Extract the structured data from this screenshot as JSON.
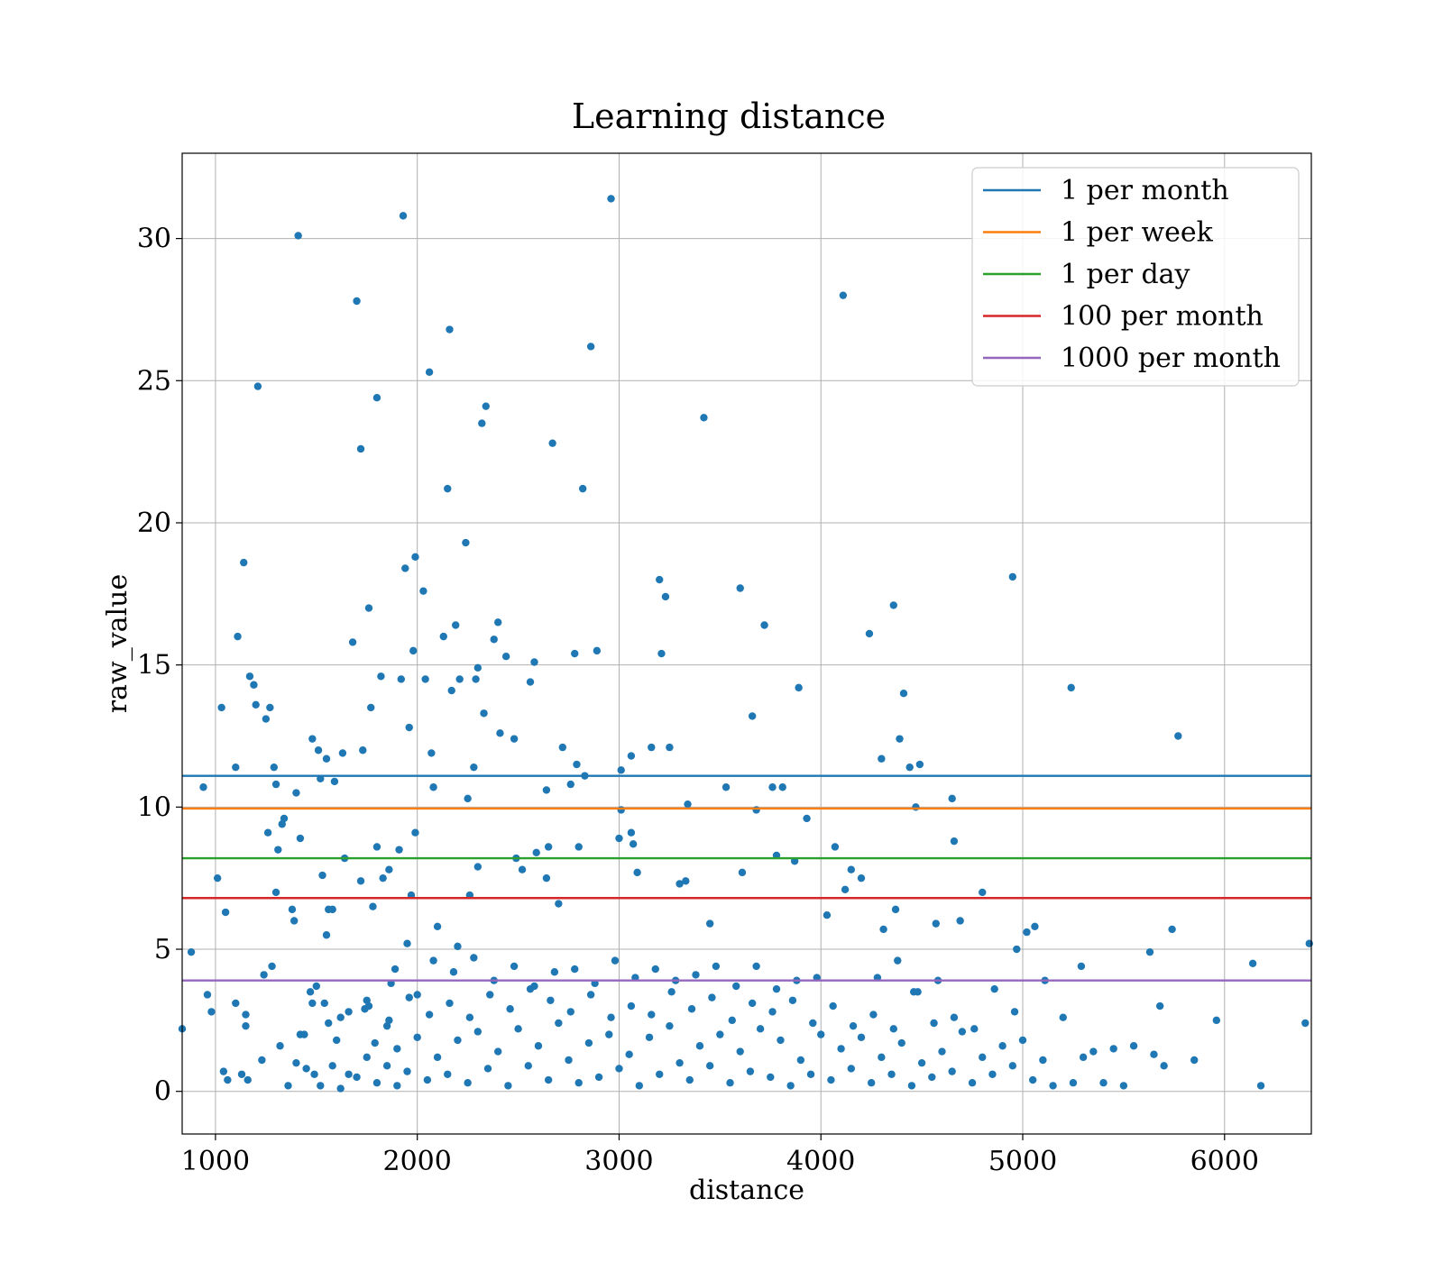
{
  "chart_data": {
    "type": "scatter",
    "title": "Learning distance",
    "xlabel": "distance",
    "ylabel": "raw_value",
    "xlim": [
      835,
      6430
    ],
    "ylim": [
      -1.5,
      33
    ],
    "xticks": [
      1000,
      2000,
      3000,
      4000,
      5000,
      6000
    ],
    "yticks": [
      0,
      5,
      10,
      15,
      20,
      25,
      30
    ],
    "grid": true,
    "legend_position": "top-right",
    "point_color": "#1f77b4",
    "hlines": [
      {
        "name": "1 per month",
        "y": 11.1,
        "color": "#1f77b4"
      },
      {
        "name": "1 per week",
        "y": 9.95,
        "color": "#ff7f0e"
      },
      {
        "name": "1 per day",
        "y": 8.2,
        "color": "#2ca02c"
      },
      {
        "name": "100 per month",
        "y": 6.8,
        "color": "#d62728"
      },
      {
        "name": "1000 per month",
        "y": 3.9,
        "color": "#9467bd"
      }
    ],
    "points": [
      [
        835,
        2.2
      ],
      [
        880,
        4.9
      ],
      [
        940,
        10.7
      ],
      [
        960,
        3.4
      ],
      [
        980,
        2.8
      ],
      [
        1010,
        7.5
      ],
      [
        1030,
        13.5
      ],
      [
        1040,
        0.7
      ],
      [
        1050,
        6.3
      ],
      [
        1060,
        0.4
      ],
      [
        1100,
        11.4
      ],
      [
        1100,
        3.1
      ],
      [
        1110,
        16.0
      ],
      [
        1130,
        0.6
      ],
      [
        1140,
        18.6
      ],
      [
        1150,
        2.3
      ],
      [
        1150,
        2.7
      ],
      [
        1160,
        0.4
      ],
      [
        1170,
        14.6
      ],
      [
        1190,
        14.3
      ],
      [
        1200,
        13.6
      ],
      [
        1210,
        24.8
      ],
      [
        1230,
        1.1
      ],
      [
        1240,
        4.1
      ],
      [
        1250,
        13.1
      ],
      [
        1260,
        9.1
      ],
      [
        1270,
        13.5
      ],
      [
        1280,
        4.4
      ],
      [
        1290,
        11.4
      ],
      [
        1300,
        10.8
      ],
      [
        1300,
        7.0
      ],
      [
        1310,
        8.5
      ],
      [
        1320,
        1.6
      ],
      [
        1330,
        9.4
      ],
      [
        1340,
        9.6
      ],
      [
        1360,
        0.2
      ],
      [
        1380,
        6.4
      ],
      [
        1390,
        6.0
      ],
      [
        1400,
        10.5
      ],
      [
        1410,
        30.1
      ],
      [
        1420,
        2.0
      ],
      [
        1420,
        8.9
      ],
      [
        1440,
        2.0
      ],
      [
        1470,
        3.5
      ],
      [
        1480,
        12.4
      ],
      [
        1490,
        0.6
      ],
      [
        1500,
        3.7
      ],
      [
        1510,
        12.0
      ],
      [
        1520,
        11.0
      ],
      [
        1530,
        7.6
      ],
      [
        1540,
        3.1
      ],
      [
        1550,
        11.7
      ],
      [
        1550,
        5.5
      ],
      [
        1560,
        6.4
      ],
      [
        1580,
        6.4
      ],
      [
        1590,
        10.9
      ],
      [
        1600,
        1.8
      ],
      [
        1620,
        2.6
      ],
      [
        1630,
        11.9
      ],
      [
        1640,
        8.2
      ],
      [
        1660,
        0.6
      ],
      [
        1680,
        15.8
      ],
      [
        1700,
        27.8
      ],
      [
        1720,
        22.6
      ],
      [
        1720,
        7.4
      ],
      [
        1730,
        12.0
      ],
      [
        1740,
        2.9
      ],
      [
        1750,
        3.2
      ],
      [
        1760,
        17.0
      ],
      [
        1770,
        13.5
      ],
      [
        1780,
        6.5
      ],
      [
        1790,
        1.7
      ],
      [
        1800,
        24.4
      ],
      [
        1800,
        8.6
      ],
      [
        1820,
        14.6
      ],
      [
        1830,
        7.5
      ],
      [
        1850,
        2.3
      ],
      [
        1860,
        7.8
      ],
      [
        1870,
        3.8
      ],
      [
        1890,
        4.3
      ],
      [
        1900,
        0.2
      ],
      [
        1910,
        8.5
      ],
      [
        1920,
        14.5
      ],
      [
        1930,
        30.8
      ],
      [
        1940,
        18.4
      ],
      [
        1950,
        5.2
      ],
      [
        1960,
        12.8
      ],
      [
        1970,
        6.9
      ],
      [
        1980,
        15.5
      ],
      [
        1990,
        18.8
      ],
      [
        1990,
        9.1
      ],
      [
        2000,
        3.4
      ],
      [
        2030,
        17.6
      ],
      [
        2040,
        14.5
      ],
      [
        2060,
        25.3
      ],
      [
        2070,
        11.9
      ],
      [
        2080,
        10.7
      ],
      [
        2100,
        5.8
      ],
      [
        2130,
        16.0
      ],
      [
        2150,
        21.2
      ],
      [
        2160,
        26.8
      ],
      [
        2170,
        14.1
      ],
      [
        2190,
        16.4
      ],
      [
        2200,
        5.1
      ],
      [
        2210,
        14.5
      ],
      [
        2240,
        19.3
      ],
      [
        2250,
        10.3
      ],
      [
        2260,
        6.9
      ],
      [
        2280,
        11.4
      ],
      [
        2290,
        14.5
      ],
      [
        2300,
        14.9
      ],
      [
        2300,
        7.9
      ],
      [
        2320,
        23.5
      ],
      [
        2330,
        13.3
      ],
      [
        2340,
        24.1
      ],
      [
        2380,
        15.9
      ],
      [
        2400,
        16.5
      ],
      [
        2410,
        12.6
      ],
      [
        2440,
        15.3
      ],
      [
        2480,
        12.4
      ],
      [
        2490,
        8.2
      ],
      [
        2520,
        7.8
      ],
      [
        2560,
        14.4
      ],
      [
        2580,
        15.1
      ],
      [
        2590,
        8.4
      ],
      [
        2640,
        10.6
      ],
      [
        2640,
        7.5
      ],
      [
        2650,
        8.6
      ],
      [
        2670,
        22.8
      ],
      [
        2700,
        6.6
      ],
      [
        2720,
        12.1
      ],
      [
        2760,
        10.8
      ],
      [
        2780,
        15.4
      ],
      [
        2790,
        11.5
      ],
      [
        2800,
        8.6
      ],
      [
        2820,
        21.2
      ],
      [
        2830,
        11.1
      ],
      [
        2860,
        26.2
      ],
      [
        2890,
        15.5
      ],
      [
        2960,
        31.4
      ],
      [
        3000,
        8.9
      ],
      [
        3010,
        11.3
      ],
      [
        3010,
        9.9
      ],
      [
        3060,
        11.8
      ],
      [
        3060,
        9.1
      ],
      [
        3070,
        8.7
      ],
      [
        3090,
        7.7
      ],
      [
        3160,
        12.1
      ],
      [
        3200,
        18.0
      ],
      [
        3210,
        15.4
      ],
      [
        3230,
        17.4
      ],
      [
        3250,
        12.1
      ],
      [
        3300,
        7.3
      ],
      [
        3330,
        7.4
      ],
      [
        3340,
        10.1
      ],
      [
        3420,
        23.7
      ],
      [
        3450,
        5.9
      ],
      [
        3530,
        10.7
      ],
      [
        3600,
        17.7
      ],
      [
        3610,
        7.7
      ],
      [
        3660,
        13.2
      ],
      [
        3680,
        9.9
      ],
      [
        3720,
        16.4
      ],
      [
        3760,
        10.7
      ],
      [
        3780,
        8.3
      ],
      [
        3810,
        10.7
      ],
      [
        3870,
        8.1
      ],
      [
        3890,
        14.2
      ],
      [
        3930,
        9.6
      ],
      [
        4030,
        6.2
      ],
      [
        4070,
        8.6
      ],
      [
        4110,
        28.0
      ],
      [
        4120,
        7.1
      ],
      [
        4150,
        7.8
      ],
      [
        4200,
        7.5
      ],
      [
        4240,
        16.1
      ],
      [
        4300,
        11.7
      ],
      [
        4310,
        5.7
      ],
      [
        4360,
        17.1
      ],
      [
        4370,
        6.4
      ],
      [
        4390,
        12.4
      ],
      [
        4410,
        14.0
      ],
      [
        4440,
        11.4
      ],
      [
        4470,
        10.0
      ],
      [
        4490,
        11.5
      ],
      [
        4570,
        5.9
      ],
      [
        4650,
        10.3
      ],
      [
        4660,
        8.8
      ],
      [
        4690,
        6.0
      ],
      [
        4800,
        7.0
      ],
      [
        4950,
        18.1
      ],
      [
        4970,
        5.0
      ],
      [
        5020,
        5.6
      ],
      [
        5060,
        5.8
      ],
      [
        5110,
        3.9
      ],
      [
        5240,
        14.2
      ],
      [
        5290,
        4.4
      ],
      [
        5630,
        4.9
      ],
      [
        5680,
        3.0
      ],
      [
        5740,
        5.7
      ],
      [
        5770,
        12.5
      ],
      [
        5960,
        2.5
      ],
      [
        6140,
        4.5
      ],
      [
        6180,
        0.2
      ],
      [
        6400,
        2.4
      ],
      [
        6420,
        5.2
      ],
      [
        1400,
        1.0
      ],
      [
        1450,
        0.8
      ],
      [
        1520,
        0.2
      ],
      [
        1580,
        0.9
      ],
      [
        1620,
        0.1
      ],
      [
        1700,
        0.5
      ],
      [
        1750,
        1.2
      ],
      [
        1800,
        0.3
      ],
      [
        1850,
        0.9
      ],
      [
        1900,
        1.5
      ],
      [
        1950,
        0.7
      ],
      [
        2000,
        1.9
      ],
      [
        2050,
        0.4
      ],
      [
        2100,
        1.2
      ],
      [
        2150,
        0.6
      ],
      [
        2200,
        1.8
      ],
      [
        2250,
        0.3
      ],
      [
        2300,
        2.1
      ],
      [
        2350,
        0.8
      ],
      [
        2400,
        1.4
      ],
      [
        2450,
        0.2
      ],
      [
        2500,
        2.2
      ],
      [
        2550,
        0.9
      ],
      [
        2600,
        1.6
      ],
      [
        2650,
        0.4
      ],
      [
        2700,
        2.4
      ],
      [
        2750,
        1.1
      ],
      [
        2800,
        0.3
      ],
      [
        2850,
        1.7
      ],
      [
        2900,
        0.5
      ],
      [
        2950,
        2.0
      ],
      [
        3000,
        0.8
      ],
      [
        3050,
        1.3
      ],
      [
        3100,
        0.2
      ],
      [
        3150,
        1.9
      ],
      [
        3200,
        0.6
      ],
      [
        3250,
        2.3
      ],
      [
        3300,
        1.0
      ],
      [
        3350,
        0.4
      ],
      [
        3400,
        1.6
      ],
      [
        3450,
        0.9
      ],
      [
        3500,
        2.0
      ],
      [
        3550,
        0.3
      ],
      [
        3600,
        1.4
      ],
      [
        3650,
        0.7
      ],
      [
        3700,
        2.2
      ],
      [
        3750,
        0.5
      ],
      [
        3800,
        1.8
      ],
      [
        3850,
        0.2
      ],
      [
        3900,
        1.1
      ],
      [
        3950,
        0.6
      ],
      [
        4000,
        2.0
      ],
      [
        4050,
        0.4
      ],
      [
        4100,
        1.5
      ],
      [
        4150,
        0.8
      ],
      [
        4200,
        1.9
      ],
      [
        4250,
        0.3
      ],
      [
        4300,
        1.2
      ],
      [
        4350,
        0.6
      ],
      [
        4400,
        1.7
      ],
      [
        4450,
        0.2
      ],
      [
        4500,
        1.0
      ],
      [
        4550,
        0.5
      ],
      [
        4600,
        1.4
      ],
      [
        4650,
        0.7
      ],
      [
        4700,
        2.1
      ],
      [
        4750,
        0.3
      ],
      [
        4800,
        1.2
      ],
      [
        4850,
        0.6
      ],
      [
        4900,
        1.6
      ],
      [
        4950,
        0.9
      ],
      [
        5000,
        1.8
      ],
      [
        5050,
        0.4
      ],
      [
        5100,
        1.1
      ],
      [
        5150,
        0.2
      ],
      [
        5200,
        2.6
      ],
      [
        5250,
        0.3
      ],
      [
        5300,
        1.2
      ],
      [
        5350,
        1.4
      ],
      [
        5400,
        0.3
      ],
      [
        5450,
        1.5
      ],
      [
        5500,
        0.2
      ],
      [
        5550,
        1.6
      ],
      [
        5650,
        1.3
      ],
      [
        5700,
        0.9
      ],
      [
        5850,
        1.1
      ],
      [
        1480,
        3.1
      ],
      [
        1560,
        2.4
      ],
      [
        1660,
        2.8
      ],
      [
        1760,
        3.0
      ],
      [
        1860,
        2.5
      ],
      [
        1960,
        3.3
      ],
      [
        2060,
        2.7
      ],
      [
        2160,
        3.1
      ],
      [
        2260,
        2.6
      ],
      [
        2360,
        3.4
      ],
      [
        2460,
        2.9
      ],
      [
        2560,
        3.6
      ],
      [
        2660,
        3.2
      ],
      [
        2760,
        2.8
      ],
      [
        2860,
        3.4
      ],
      [
        2960,
        2.6
      ],
      [
        3060,
        3.0
      ],
      [
        3160,
        2.7
      ],
      [
        3260,
        3.5
      ],
      [
        3360,
        2.9
      ],
      [
        3460,
        3.3
      ],
      [
        3560,
        2.5
      ],
      [
        3660,
        3.1
      ],
      [
        3760,
        2.8
      ],
      [
        3860,
        3.2
      ],
      [
        3960,
        2.4
      ],
      [
        4060,
        3.0
      ],
      [
        4160,
        2.3
      ],
      [
        4260,
        2.7
      ],
      [
        4360,
        2.2
      ],
      [
        4460,
        3.5
      ],
      [
        4560,
        2.4
      ],
      [
        4660,
        2.6
      ],
      [
        4760,
        2.2
      ],
      [
        4860,
        3.6
      ],
      [
        4960,
        2.8
      ],
      [
        2080,
        4.6
      ],
      [
        2180,
        4.2
      ],
      [
        2280,
        4.7
      ],
      [
        2380,
        3.9
      ],
      [
        2480,
        4.4
      ],
      [
        2580,
        3.7
      ],
      [
        2680,
        4.2
      ],
      [
        2780,
        4.3
      ],
      [
        2880,
        3.8
      ],
      [
        2980,
        4.6
      ],
      [
        3080,
        4.0
      ],
      [
        3180,
        4.3
      ],
      [
        3280,
        3.9
      ],
      [
        3380,
        4.1
      ],
      [
        3480,
        4.4
      ],
      [
        3580,
        3.7
      ],
      [
        3680,
        4.4
      ],
      [
        3780,
        3.6
      ],
      [
        3880,
        3.9
      ],
      [
        3980,
        4.0
      ],
      [
        4280,
        4.0
      ],
      [
        4380,
        4.6
      ],
      [
        4480,
        3.5
      ],
      [
        4580,
        3.9
      ]
    ]
  }
}
